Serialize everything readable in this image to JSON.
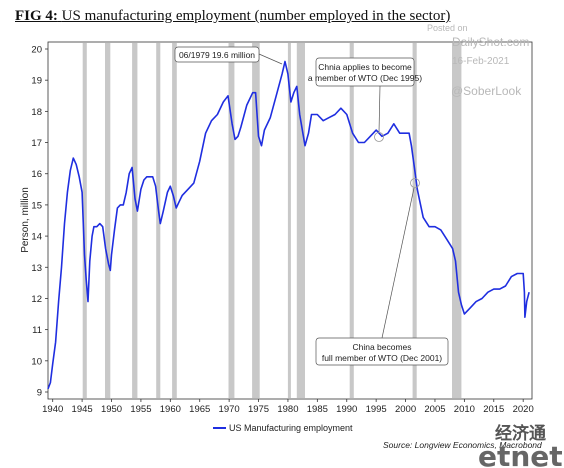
{
  "header": {
    "fig_label": "FIG 4:",
    "title": "US manufacturing employment (number employed in the sector)"
  },
  "watermark": {
    "posted_on": "Posted on",
    "site": "DailyShot.com",
    "date": "16-Feb-2021",
    "handle": "@SoberLook"
  },
  "annotations": {
    "peak": "06/1979 19.6 million",
    "wto_apply_line1": "Chnia applies to become",
    "wto_apply_line2": "a member of WTO (Dec 1995)",
    "wto_member_line1": "China becomes",
    "wto_member_line2": "full member of WTO (Dec 2001)"
  },
  "footer": {
    "source": "Source: Longview Economics, Macrobond",
    "logo_cn": "经济通",
    "logo": "etnet"
  },
  "colors": {
    "line": "#1f2ee0",
    "recession": "#c8c8c8"
  },
  "chart_data": {
    "type": "line",
    "title": "US manufacturing employment (number employed in the sector)",
    "xlabel": "",
    "ylabel": "Person, million",
    "xlim": [
      1939.2,
      2021.5
    ],
    "ylim": [
      9,
      20
    ],
    "x_ticks": [
      1940,
      1945,
      1950,
      1955,
      1960,
      1965,
      1970,
      1975,
      1980,
      1985,
      1990,
      1995,
      2000,
      2005,
      2010,
      2015,
      2020
    ],
    "y_ticks": [
      9,
      10,
      11,
      12,
      13,
      14,
      15,
      16,
      17,
      18,
      19,
      20
    ],
    "grid": false,
    "legend_position": "bottom-left",
    "recessions": [
      [
        1945.1,
        1945.8
      ],
      [
        1948.9,
        1949.8
      ],
      [
        1953.5,
        1954.4
      ],
      [
        1957.6,
        1958.3
      ],
      [
        1960.3,
        1961.1
      ],
      [
        1969.9,
        1970.9
      ],
      [
        1973.9,
        1975.2
      ],
      [
        1980.0,
        1980.5
      ],
      [
        1981.5,
        1982.9
      ],
      [
        1990.5,
        1991.2
      ],
      [
        2001.2,
        2001.9
      ],
      [
        2007.9,
        2009.5
      ]
    ],
    "series": [
      {
        "name": "US Manufacturing employment",
        "points": [
          [
            1939.2,
            9.1
          ],
          [
            1939.6,
            9.3
          ],
          [
            1940.0,
            9.9
          ],
          [
            1940.5,
            10.6
          ],
          [
            1941.0,
            11.9
          ],
          [
            1941.5,
            13.0
          ],
          [
            1942.0,
            14.4
          ],
          [
            1942.5,
            15.4
          ],
          [
            1943.0,
            16.1
          ],
          [
            1943.5,
            16.5
          ],
          [
            1944.0,
            16.3
          ],
          [
            1944.5,
            15.9
          ],
          [
            1945.0,
            15.4
          ],
          [
            1945.4,
            13.4
          ],
          [
            1945.7,
            12.6
          ],
          [
            1946.0,
            11.9
          ],
          [
            1946.3,
            13.2
          ],
          [
            1946.7,
            14.0
          ],
          [
            1947.0,
            14.3
          ],
          [
            1947.5,
            14.3
          ],
          [
            1948.0,
            14.4
          ],
          [
            1948.5,
            14.3
          ],
          [
            1949.0,
            13.6
          ],
          [
            1949.5,
            13.1
          ],
          [
            1949.8,
            12.9
          ],
          [
            1950.0,
            13.4
          ],
          [
            1950.5,
            14.2
          ],
          [
            1951.0,
            14.9
          ],
          [
            1951.5,
            15.0
          ],
          [
            1952.0,
            15.0
          ],
          [
            1952.5,
            15.4
          ],
          [
            1953.0,
            16.0
          ],
          [
            1953.5,
            16.2
          ],
          [
            1954.0,
            15.2
          ],
          [
            1954.4,
            14.8
          ],
          [
            1955.0,
            15.5
          ],
          [
            1955.5,
            15.8
          ],
          [
            1956.0,
            15.9
          ],
          [
            1956.5,
            15.9
          ],
          [
            1957.0,
            15.9
          ],
          [
            1957.5,
            15.6
          ],
          [
            1958.0,
            14.8
          ],
          [
            1958.3,
            14.4
          ],
          [
            1958.8,
            14.8
          ],
          [
            1959.5,
            15.4
          ],
          [
            1960.0,
            15.6
          ],
          [
            1960.5,
            15.3
          ],
          [
            1961.0,
            14.9
          ],
          [
            1961.5,
            15.1
          ],
          [
            1962.0,
            15.3
          ],
          [
            1963.0,
            15.5
          ],
          [
            1964.0,
            15.7
          ],
          [
            1965.0,
            16.4
          ],
          [
            1966.0,
            17.3
          ],
          [
            1967.0,
            17.7
          ],
          [
            1968.0,
            17.9
          ],
          [
            1969.0,
            18.3
          ],
          [
            1969.8,
            18.5
          ],
          [
            1970.5,
            17.6
          ],
          [
            1971.0,
            17.1
          ],
          [
            1971.5,
            17.2
          ],
          [
            1972.0,
            17.5
          ],
          [
            1973.0,
            18.2
          ],
          [
            1974.0,
            18.6
          ],
          [
            1974.5,
            18.6
          ],
          [
            1975.0,
            17.2
          ],
          [
            1975.5,
            16.9
          ],
          [
            1976.0,
            17.4
          ],
          [
            1977.0,
            17.8
          ],
          [
            1978.0,
            18.5
          ],
          [
            1979.0,
            19.2
          ],
          [
            1979.5,
            19.6
          ],
          [
            1980.0,
            19.2
          ],
          [
            1980.5,
            18.3
          ],
          [
            1981.0,
            18.6
          ],
          [
            1981.5,
            18.8
          ],
          [
            1982.0,
            17.9
          ],
          [
            1982.9,
            16.9
          ],
          [
            1983.5,
            17.3
          ],
          [
            1984.0,
            17.9
          ],
          [
            1985.0,
            17.9
          ],
          [
            1986.0,
            17.7
          ],
          [
            1987.0,
            17.8
          ],
          [
            1988.0,
            17.9
          ],
          [
            1989.0,
            18.1
          ],
          [
            1990.0,
            17.9
          ],
          [
            1991.0,
            17.3
          ],
          [
            1992.0,
            17.0
          ],
          [
            1993.0,
            17.0
          ],
          [
            1994.0,
            17.2
          ],
          [
            1995.0,
            17.4
          ],
          [
            1996.0,
            17.2
          ],
          [
            1997.0,
            17.3
          ],
          [
            1998.0,
            17.6
          ],
          [
            1999.0,
            17.3
          ],
          [
            2000.0,
            17.3
          ],
          [
            2000.6,
            17.3
          ],
          [
            2001.0,
            16.9
          ],
          [
            2001.5,
            16.2
          ],
          [
            2002.0,
            15.5
          ],
          [
            2003.0,
            14.6
          ],
          [
            2004.0,
            14.3
          ],
          [
            2005.0,
            14.3
          ],
          [
            2006.0,
            14.2
          ],
          [
            2007.0,
            13.9
          ],
          [
            2008.0,
            13.6
          ],
          [
            2008.5,
            13.2
          ],
          [
            2009.0,
            12.2
          ],
          [
            2009.5,
            11.8
          ],
          [
            2010.0,
            11.5
          ],
          [
            2010.5,
            11.6
          ],
          [
            2011.0,
            11.7
          ],
          [
            2012.0,
            11.9
          ],
          [
            2013.0,
            12.0
          ],
          [
            2014.0,
            12.2
          ],
          [
            2015.0,
            12.3
          ],
          [
            2016.0,
            12.3
          ],
          [
            2017.0,
            12.4
          ],
          [
            2018.0,
            12.7
          ],
          [
            2019.0,
            12.8
          ],
          [
            2020.0,
            12.8
          ],
          [
            2020.2,
            12.2
          ],
          [
            2020.3,
            11.4
          ],
          [
            2020.6,
            11.9
          ],
          [
            2021.0,
            12.2
          ]
        ]
      }
    ]
  }
}
